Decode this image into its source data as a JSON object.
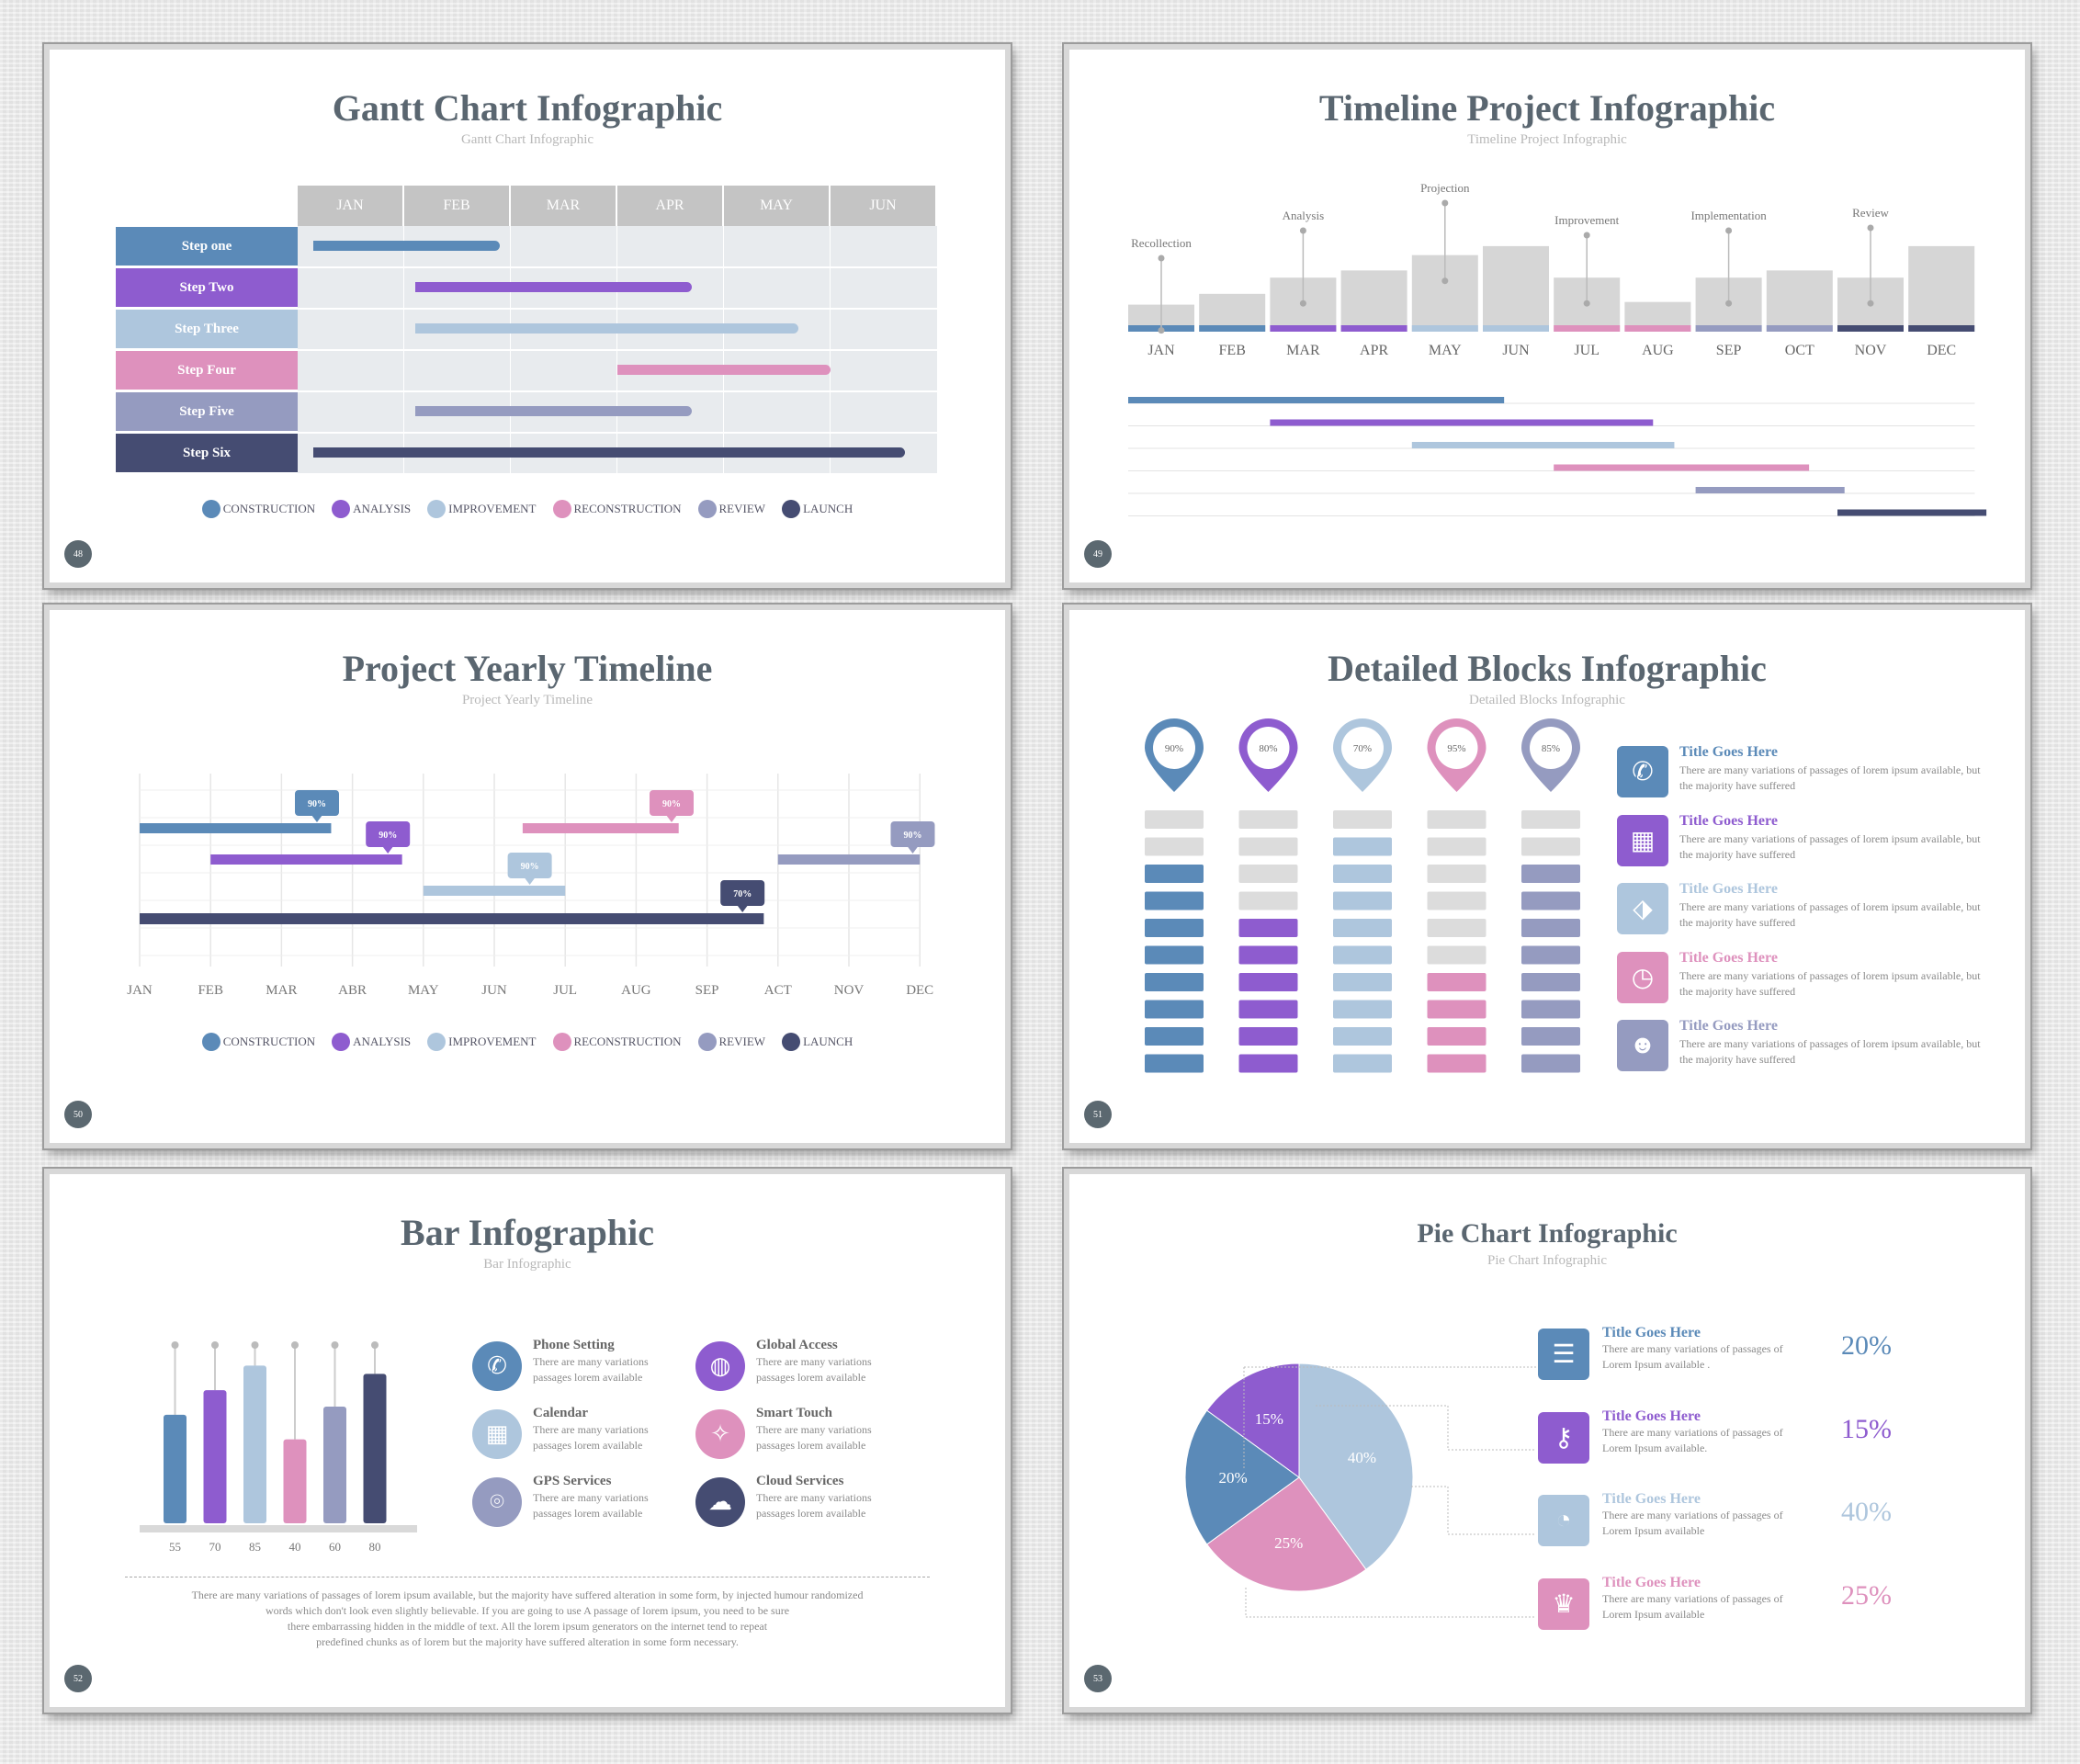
{
  "colors": {
    "construction": "#5b8ab8",
    "analysis": "#8e5ccf",
    "improvement": "#aec6dd",
    "reconstruction": "#de91bd",
    "review": "#959bc0",
    "launch": "#454c72",
    "grey": "#d6d6d6",
    "dark": "#5a6670"
  },
  "legend": [
    "CONSTRUCTION",
    "ANALYSIS",
    "IMPROVEMENT",
    "RECONSTRUCTION",
    "REVIEW",
    "LAUNCH"
  ],
  "slide1": {
    "title": "Gantt Chart Infographic",
    "subtitle": "Gantt Chart Infographic",
    "page": "48",
    "months": [
      "JAN",
      "FEB",
      "MAR",
      "APR",
      "MAY",
      "JUN"
    ],
    "steps": [
      "Step one",
      "Step Two",
      "Step Three",
      "Step Four",
      "Step Five",
      "Step Six"
    ],
    "bars": [
      [
        0.15,
        1.9
      ],
      [
        1.1,
        3.7
      ],
      [
        1.1,
        4.7
      ],
      [
        3.0,
        5.0
      ],
      [
        1.1,
        3.7
      ],
      [
        0.15,
        5.7
      ]
    ]
  },
  "slide2": {
    "title": "Timeline Project  Infographic",
    "subtitle": "Timeline Project  Infographic",
    "page": "49",
    "months": [
      "JAN",
      "FEB",
      "MAR",
      "APR",
      "MAY",
      "JUN",
      "JUL",
      "AUG",
      "SEP",
      "OCT",
      "NOV",
      "DEC"
    ],
    "levels": [
      0.3,
      0.42,
      0.6,
      0.68,
      0.85,
      0.95,
      0.6,
      0.33,
      0.6,
      0.68,
      0.6,
      0.95
    ],
    "milestones": [
      {
        "label": "Recollection",
        "month": 0
      },
      {
        "label": "Analysis",
        "month": 2
      },
      {
        "label": "Projection",
        "month": 4
      },
      {
        "label": "Improvement",
        "month": 6
      },
      {
        "label": "Implementation",
        "month": 8
      },
      {
        "label": "Review",
        "month": 10
      }
    ],
    "ranges": [
      [
        0,
        5.3
      ],
      [
        2,
        7.4
      ],
      [
        4,
        7.7
      ],
      [
        6,
        9.6
      ],
      [
        8,
        10.1
      ],
      [
        10,
        12.1
      ]
    ]
  },
  "slide3": {
    "title": "Project Yearly Timeline",
    "subtitle": "Project Yearly Timeline",
    "page": "50",
    "months": [
      "JAN",
      "FEB",
      "MAR",
      "ABR",
      "MAY",
      "JUN",
      "JUL",
      "AUG",
      "SEP",
      "ACT",
      "NOV",
      "DEC"
    ],
    "bars": [
      {
        "start": 0,
        "end": 2.7,
        "label": "90%",
        "tag": 2.5
      },
      {
        "start": 1,
        "end": 3.7,
        "label": "90%",
        "tag": 3.5
      },
      {
        "start": 4.0,
        "end": 6.0,
        "label": "90%",
        "tag": 5.5
      },
      {
        "start": 5.4,
        "end": 7.6,
        "label": "90%",
        "tag": 7.5
      },
      {
        "start": 9.0,
        "end": 11.0,
        "label": "90%",
        "tag": 10.9
      },
      {
        "start": 0,
        "end": 8.8,
        "label": "70%",
        "tag": 8.5
      }
    ]
  },
  "slide4": {
    "title": "Detailed Blocks Infographic",
    "subtitle": "Detailed Blocks Infographic",
    "page": "51",
    "columns": [
      {
        "pct": "90%",
        "filled": 8
      },
      {
        "pct": "80%",
        "filled": 6
      },
      {
        "pct": "70%",
        "filled": 9
      },
      {
        "pct": "95%",
        "filled": 4
      },
      {
        "pct": "85%",
        "filled": 8
      }
    ],
    "items": [
      {
        "title": "Title Goes Here",
        "body": "There are many variations of passages of lorem ipsum available, but the majority have suffered",
        "icon": "phone-icon"
      },
      {
        "title": "Title Goes Here",
        "body": "There are many variations of passages of lorem ipsum available, but the majority have suffered",
        "icon": "calendar-icon"
      },
      {
        "title": "Title Goes Here",
        "body": "There are many variations of passages of lorem ipsum available, but the majority have suffered",
        "icon": "tag-icon"
      },
      {
        "title": "Title Goes Here",
        "body": "There are many variations of passages of lorem ipsum available, but the majority have suffered",
        "icon": "clock-icon"
      },
      {
        "title": "Title Goes Here",
        "body": "There are many variations of passages of lorem ipsum available, but the majority have suffered",
        "icon": "users-icon"
      }
    ]
  },
  "slide5": {
    "title": "Bar Infographic",
    "subtitle": "Bar Infographic",
    "page": "52",
    "values": [
      55,
      70,
      85,
      40,
      60,
      80
    ],
    "features": [
      {
        "title": "Phone Setting",
        "body": "There are many variations passages lorem available",
        "icon": "phone-icon"
      },
      {
        "title": "Global Access",
        "body": "There are many variations passages lorem available",
        "icon": "globe-icon"
      },
      {
        "title": "Calendar",
        "body": "There are many variations passages lorem available",
        "icon": "calendar-icon"
      },
      {
        "title": "Smart Touch",
        "body": "There are many variations passages lorem available",
        "icon": "bulb-icon"
      },
      {
        "title": "GPS Services",
        "body": "There are many variations passages lorem available",
        "icon": "pin-icon"
      },
      {
        "title": "Cloud Services",
        "body": "There are many variations passages lorem available",
        "icon": "cloud-icon"
      }
    ],
    "footer": [
      "There are many variations of passages of lorem ipsum available, but the majority have suffered alteration in some form, by injected humour randomized",
      "words which don't look even slightly believable. If you are going to use A passage of lorem ipsum, you need to be sure",
      "there embarrassing hidden in the middle of text. All the lorem ipsum generators on the internet tend to repeat",
      "predefined chunks as of lorem but the majority have suffered alteration in some form necessary."
    ]
  },
  "slide6": {
    "title": "Pie Chart Infographic",
    "subtitle": "Pie Chart Infographic",
    "page": "53",
    "slices": [
      {
        "label": "40%",
        "value": 40
      },
      {
        "label": "25%",
        "value": 25
      },
      {
        "label": "20%",
        "value": 20
      },
      {
        "label": "15%",
        "value": 15
      }
    ],
    "items": [
      {
        "title": "Title Goes Here",
        "body1": "There are many variations of passages of",
        "body2": "Lorem Ipsum available .",
        "pct": "20%",
        "icon": "list-icon"
      },
      {
        "title": "Title Goes Here",
        "body1": "There are many variations of passages of",
        "body2": "Lorem Ipsum available.",
        "pct": "15%",
        "icon": "key-icon"
      },
      {
        "title": "Title Goes Here",
        "body1": "There are many variations of passages of",
        "body2": "Lorem Ipsum available",
        "pct": "40%",
        "icon": "gauge-icon"
      },
      {
        "title": "Title Goes Here",
        "body1": "There are many variations of passages of",
        "body2": "Lorem Ipsum available",
        "pct": "25%",
        "icon": "trophy-icon"
      }
    ]
  }
}
